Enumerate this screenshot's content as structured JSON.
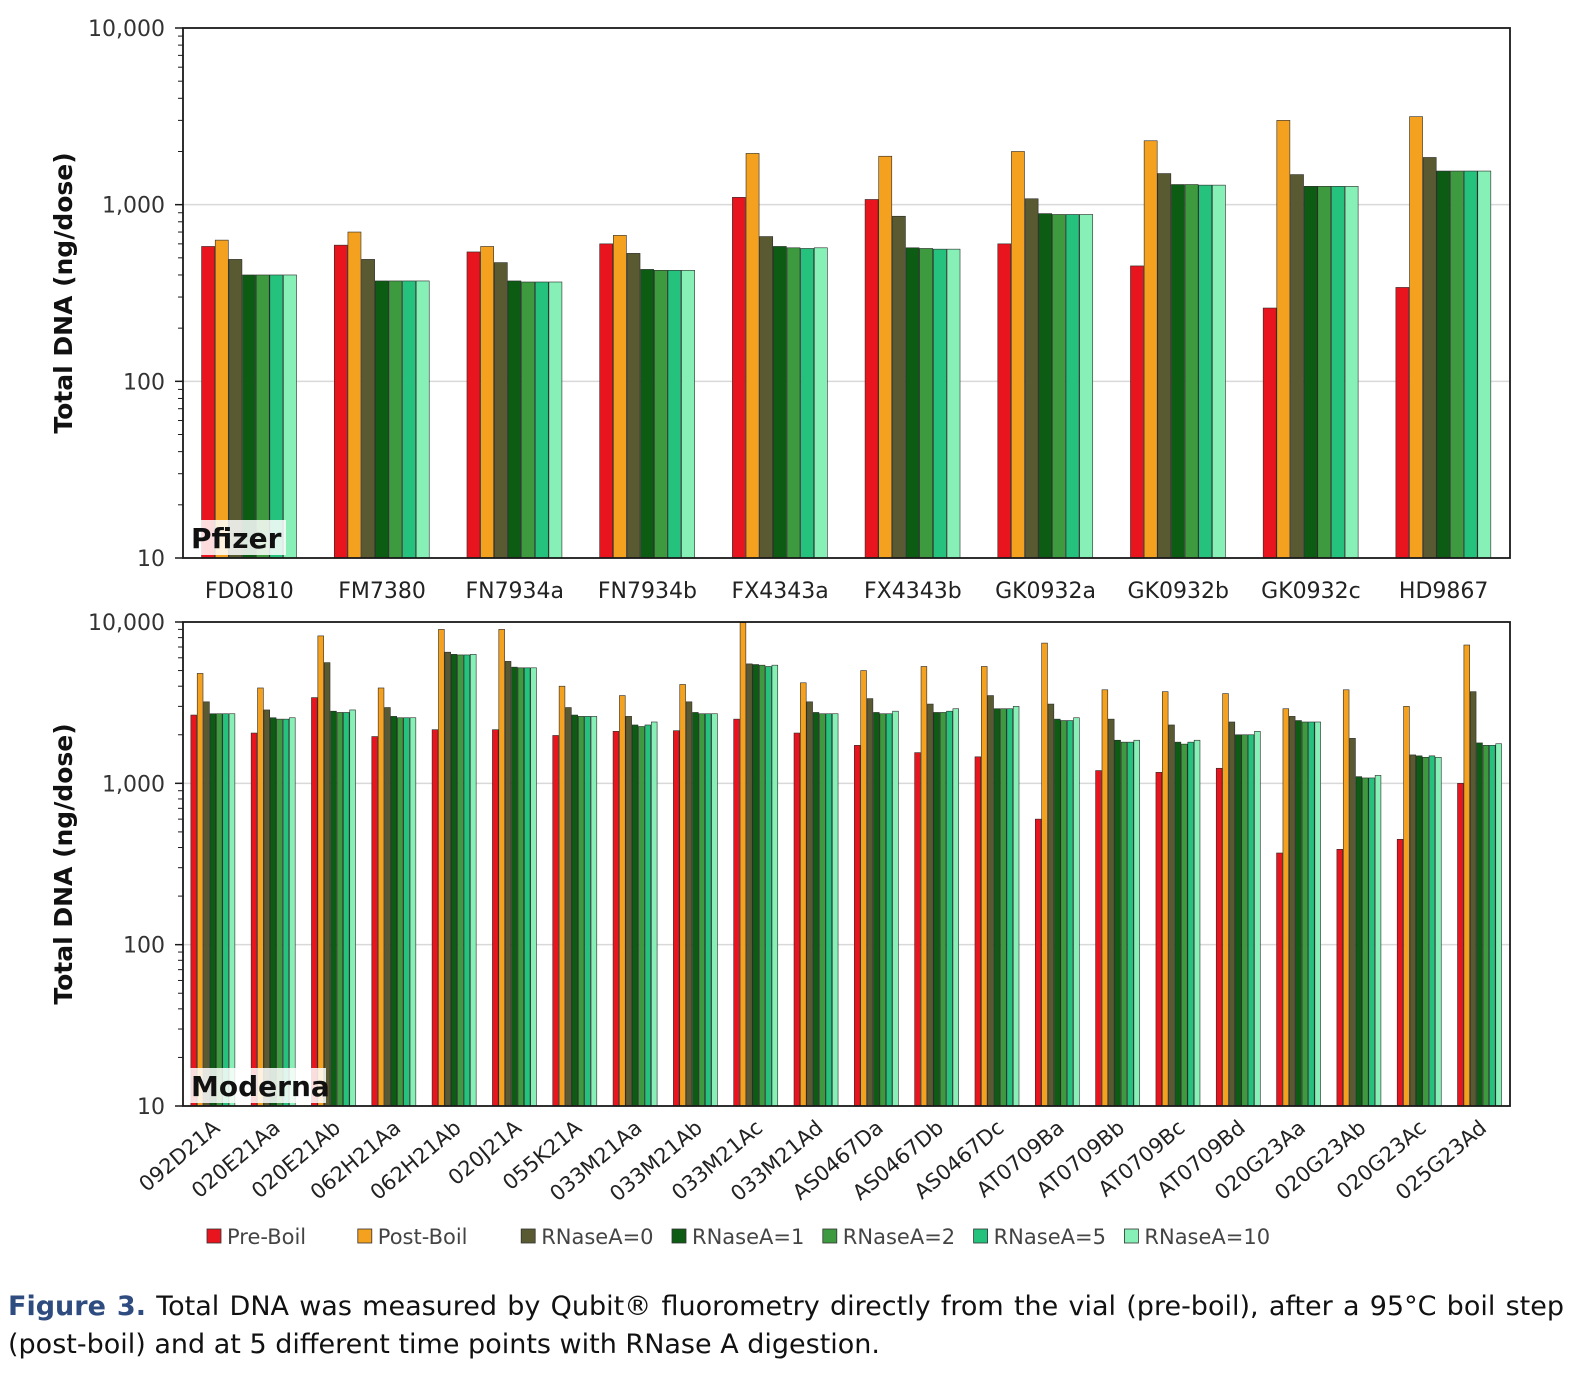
{
  "chart_data": [
    {
      "type": "bar",
      "panel_label": "Pfizer",
      "ylabel": "Total DNA (ng/dose)",
      "yscale": "log",
      "ylim": [
        10,
        10000
      ],
      "yticks": [
        "10",
        "100",
        "1,000",
        "10,000"
      ],
      "grid": true,
      "categories": [
        "FDO810",
        "FM7380",
        "FN7934a",
        "FN7934b",
        "FX4343a",
        "FX4343b",
        "GK0932a",
        "GK0932b",
        "GK0932c",
        "HD9867"
      ],
      "series": [
        {
          "name": "Pre-Boil",
          "color": "#e8141e",
          "values": [
            580,
            590,
            540,
            600,
            1100,
            1070,
            600,
            450,
            260,
            340
          ]
        },
        {
          "name": "Post-Boil",
          "color": "#f4a11f",
          "values": [
            630,
            700,
            580,
            670,
            1950,
            1880,
            2000,
            2300,
            3000,
            3150
          ]
        },
        {
          "name": "RNaseA=0",
          "color": "#5a5a32",
          "values": [
            490,
            490,
            470,
            530,
            660,
            860,
            1080,
            1500,
            1480,
            1850
          ]
        },
        {
          "name": "RNaseA=1",
          "color": "#0d5c14",
          "values": [
            400,
            370,
            370,
            430,
            580,
            570,
            890,
            1300,
            1270,
            1550
          ]
        },
        {
          "name": "RNaseA=2",
          "color": "#3e9a3e",
          "values": [
            400,
            370,
            365,
            425,
            570,
            565,
            880,
            1300,
            1270,
            1550
          ]
        },
        {
          "name": "RNaseA=5",
          "color": "#24c27c",
          "values": [
            400,
            370,
            365,
            425,
            565,
            560,
            880,
            1290,
            1270,
            1550
          ]
        },
        {
          "name": "RNaseA=10",
          "color": "#86f0b6",
          "values": [
            400,
            370,
            365,
            425,
            570,
            560,
            880,
            1290,
            1270,
            1550
          ]
        }
      ]
    },
    {
      "type": "bar",
      "panel_label": "Moderna",
      "ylabel": "Total DNA (ng/dose)",
      "yscale": "log",
      "ylim": [
        10,
        10000
      ],
      "yticks": [
        "10",
        "100",
        "1,000",
        "10,000"
      ],
      "grid": true,
      "categories": [
        "092D21A",
        "020E21Aa",
        "020E21Ab",
        "062H21Aa",
        "062H21Ab",
        "020J21A",
        "055K21A",
        "033M21Aa",
        "033M21Ab",
        "033M21Ac",
        "033M21Ad",
        "AS0467Da",
        "AS0467Db",
        "AS0467Dc",
        "AT0709Ba",
        "AT0709Bb",
        "AT0709Bc",
        "AT0709Bd",
        "020G23Aa",
        "020G23Ab",
        "020G23Ac",
        "025G23Ad"
      ],
      "series": [
        {
          "name": "Pre-Boil",
          "color": "#e8141e",
          "values": [
            2650,
            2050,
            3400,
            1950,
            2150,
            2150,
            1980,
            2100,
            2120,
            2500,
            2050,
            1720,
            1550,
            1460,
            600,
            1200,
            1170,
            1240,
            370,
            390,
            450,
            1000
          ]
        },
        {
          "name": "Post-Boil",
          "color": "#f4a11f",
          "values": [
            4800,
            3900,
            8200,
            3900,
            9000,
            9000,
            4000,
            3500,
            4100,
            9900,
            4200,
            5000,
            5300,
            5300,
            7400,
            3800,
            3700,
            3600,
            2900,
            3800,
            3000,
            7200
          ]
        },
        {
          "name": "RNaseA=0",
          "color": "#5a5a32",
          "values": [
            3200,
            2850,
            5600,
            2950,
            6500,
            5700,
            2950,
            2600,
            3200,
            5500,
            3200,
            3350,
            3100,
            3500,
            3100,
            2500,
            2300,
            2400,
            2600,
            1900,
            1500,
            3700
          ]
        },
        {
          "name": "RNaseA=1",
          "color": "#0d5c14",
          "values": [
            2700,
            2550,
            2800,
            2600,
            6300,
            5250,
            2650,
            2300,
            2750,
            5450,
            2750,
            2750,
            2750,
            2900,
            2500,
            1850,
            1800,
            2000,
            2450,
            1100,
            1480,
            1780
          ]
        },
        {
          "name": "RNaseA=2",
          "color": "#3e9a3e",
          "values": [
            2700,
            2500,
            2750,
            2550,
            6250,
            5200,
            2600,
            2250,
            2700,
            5400,
            2700,
            2700,
            2750,
            2900,
            2450,
            1800,
            1750,
            2000,
            2400,
            1080,
            1450,
            1720
          ]
        },
        {
          "name": "RNaseA=5",
          "color": "#24c27c",
          "values": [
            2700,
            2500,
            2750,
            2550,
            6250,
            5200,
            2600,
            2300,
            2700,
            5300,
            2700,
            2700,
            2800,
            2900,
            2450,
            1800,
            1800,
            2000,
            2400,
            1080,
            1480,
            1720
          ]
        },
        {
          "name": "RNaseA=10",
          "color": "#86f0b6",
          "values": [
            2700,
            2550,
            2850,
            2550,
            6300,
            5200,
            2600,
            2400,
            2700,
            5400,
            2700,
            2800,
            2900,
            3000,
            2550,
            1850,
            1850,
            2100,
            2400,
            1120,
            1450,
            1760
          ]
        }
      ]
    }
  ],
  "legend": [
    "Pre-Boil",
    "Post-Boil",
    "RNaseA=0",
    "RNaseA=1",
    "RNaseA=2",
    "RNaseA=5",
    "RNaseA=10"
  ],
  "caption": {
    "label": "Figure 3.",
    "text": " Total DNA was measured by Qubit® fluorometry directly from the vial (pre-boil), after a 95°C boil step (post-boil) and at 5 different time points with RNase A digestion."
  }
}
